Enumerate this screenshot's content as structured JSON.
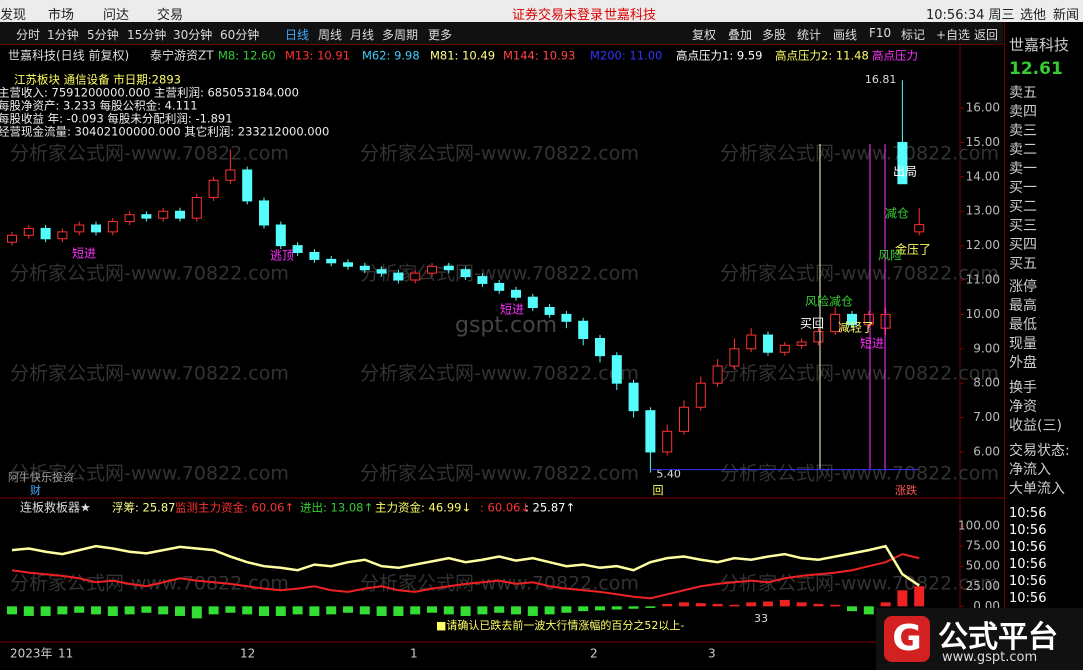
{
  "menu": [
    "发现",
    "市场",
    "问达",
    "交易"
  ],
  "status": "证券交易未登录",
  "stock_top": "世嘉科技",
  "clock": "10:56:34 周三",
  "top_right": [
    "选他",
    "新闻"
  ],
  "periods": [
    "分时",
    "1分钟",
    "5分钟",
    "15分钟",
    "30分钟",
    "60分钟",
    "日线",
    "周线",
    "月线",
    "多周期",
    "更多"
  ],
  "tools": [
    "复权",
    "叠加",
    "多股",
    "统计",
    "画线",
    "F10",
    "标记",
    "+自选",
    "返回"
  ],
  "chart_title": "世嘉科技(日线 前复权)",
  "indicator_name": "泰宁游资ZT",
  "ma": [
    "M8: 12.60",
    "M13: 10.91",
    "M62: 9.98",
    "M81: 10.49",
    "M144: 10.93",
    "M200: 11.00",
    "高点压力1: 9.59",
    "高点压力2: 11.48",
    "高点压力"
  ],
  "info": [
    "江苏板块  通信设备 市日期:2893",
    "主营收入: 7591200000.000   主营利润:  685053184.000",
    "每股净资产: 3.233       每股公积金:  4.111",
    "每股收益 年: -0.093     每股未分配利润:  -1.891",
    "经营现金流量: 30402100000.000   其它利润:  233212000.000"
  ],
  "watermark": "分析家公式网-www.70822.com",
  "site": "gspt.com",
  "main": {
    "ylim": [
      4.69,
      17.34
    ],
    "price_ticks": [
      {
        "value": 6,
        "label": "6.00"
      },
      {
        "value": 7,
        "label": "7.00"
      },
      {
        "value": 8,
        "label": "8.00"
      },
      {
        "value": 9,
        "label": "9.00"
      },
      {
        "value": 10,
        "label": "10.00"
      },
      {
        "value": 11,
        "label": "11.00"
      },
      {
        "value": 12,
        "label": "12.00"
      },
      {
        "value": 13,
        "label": "13.00"
      },
      {
        "value": 14,
        "label": "14.00"
      },
      {
        "value": 15,
        "label": "15.00"
      },
      {
        "value": 16,
        "label": "16.00"
      }
    ],
    "candles": {
      "open": [
        12.1,
        12.3,
        12.5,
        12.2,
        12.4,
        12.6,
        12.4,
        12.7,
        12.9,
        12.8,
        13.0,
        12.8,
        13.4,
        13.9,
        14.2,
        13.3,
        12.6,
        12.0,
        11.8,
        11.6,
        11.5,
        11.4,
        11.3,
        11.2,
        11.0,
        11.2,
        11.4,
        11.3,
        11.1,
        10.9,
        10.7,
        10.5,
        10.2,
        10.0,
        9.8,
        9.3,
        8.8,
        8.0,
        7.2,
        6.0,
        6.6,
        7.3,
        8.0,
        8.5,
        9.0,
        9.4,
        8.9,
        9.1,
        9.2,
        9.5,
        10.0,
        9.7,
        9.6,
        15.0,
        12.4
      ],
      "high": [
        12.4,
        12.6,
        12.6,
        12.5,
        12.7,
        12.7,
        12.8,
        13.0,
        13.0,
        13.1,
        13.1,
        13.5,
        14.0,
        14.8,
        14.3,
        13.4,
        12.7,
        12.1,
        11.9,
        11.7,
        11.6,
        11.5,
        11.4,
        11.3,
        11.3,
        11.5,
        11.5,
        11.4,
        11.2,
        11.0,
        10.8,
        10.6,
        10.3,
        10.1,
        9.9,
        9.4,
        8.9,
        8.1,
        7.3,
        6.8,
        7.5,
        8.2,
        8.7,
        9.3,
        9.6,
        9.5,
        9.2,
        9.3,
        9.6,
        10.2,
        10.1,
        10.1,
        10.2,
        16.81,
        13.1
      ],
      "low": [
        12.0,
        12.2,
        12.1,
        12.1,
        12.3,
        12.3,
        12.3,
        12.6,
        12.7,
        12.7,
        12.7,
        12.7,
        13.3,
        13.8,
        13.2,
        12.5,
        11.9,
        11.7,
        11.5,
        11.4,
        11.3,
        11.2,
        11.1,
        10.9,
        10.9,
        11.1,
        11.2,
        11.0,
        10.8,
        10.6,
        10.4,
        10.1,
        9.9,
        9.6,
        9.1,
        8.6,
        7.8,
        7.0,
        5.4,
        5.9,
        6.5,
        7.2,
        7.9,
        8.4,
        8.9,
        8.8,
        8.8,
        9.0,
        9.1,
        9.4,
        9.6,
        9.6,
        9.4,
        13.8,
        12.3
      ],
      "close": [
        12.3,
        12.5,
        12.2,
        12.4,
        12.6,
        12.4,
        12.7,
        12.9,
        12.8,
        13.0,
        12.8,
        13.4,
        13.9,
        14.2,
        13.3,
        12.6,
        12.0,
        11.8,
        11.6,
        11.5,
        11.4,
        11.3,
        11.2,
        11.0,
        11.2,
        11.4,
        11.3,
        11.1,
        10.9,
        10.7,
        10.5,
        10.2,
        10.0,
        9.8,
        9.3,
        8.8,
        8.0,
        7.2,
        6.0,
        6.6,
        7.3,
        8.0,
        8.5,
        9.0,
        9.4,
        8.9,
        9.1,
        9.2,
        9.5,
        10.0,
        9.7,
        10.0,
        10.0,
        13.8,
        12.61
      ]
    },
    "high_label": "16.81",
    "low_label": "5.40",
    "annotations": [
      "出局",
      "减仓",
      "金压了",
      "风险",
      "风险减仓",
      "短进",
      "短进",
      "买回",
      "减轻了",
      "逃顶",
      "短进"
    ],
    "panel_label": "阿牛快乐投资",
    "corner": "财",
    "box": "回",
    "updown": "涨跌"
  },
  "sub": {
    "name": "连板救板器★",
    "items": [
      "浮筹: 25.87",
      "监测主力资金: 60.06↑",
      "进出: 13.08↑",
      "主力资金: 46.99↓",
      ": 60.06↓",
      ": 25.87↑"
    ],
    "ylim": [
      -22,
      115
    ],
    "ticks": [
      {
        "value": 0,
        "label": "0.00"
      },
      {
        "value": 25,
        "label": "25.00"
      },
      {
        "value": 50,
        "label": "50.00"
      },
      {
        "value": 75,
        "label": "75.00"
      },
      {
        "value": 100,
        "label": "100.00"
      }
    ],
    "yellow": [
      70,
      72,
      68,
      65,
      70,
      75,
      72,
      68,
      66,
      70,
      74,
      72,
      70,
      62,
      55,
      50,
      48,
      45,
      52,
      50,
      55,
      58,
      50,
      48,
      52,
      56,
      60,
      55,
      58,
      62,
      57,
      60,
      55,
      50,
      52,
      48,
      50,
      45,
      55,
      60,
      62,
      58,
      55,
      60,
      58,
      62,
      65,
      60,
      58,
      62,
      66,
      70,
      75,
      40,
      25.87
    ],
    "red": [
      45,
      42,
      40,
      38,
      35,
      30,
      32,
      28,
      25,
      30,
      35,
      32,
      30,
      28,
      25,
      22,
      20,
      22,
      25,
      20,
      18,
      22,
      25,
      20,
      18,
      22,
      25,
      28,
      30,
      32,
      28,
      30,
      25,
      22,
      20,
      18,
      15,
      12,
      10,
      15,
      20,
      25,
      28,
      30,
      32,
      30,
      35,
      38,
      40,
      42,
      45,
      50,
      55,
      65,
      60.06
    ],
    "bars": [
      -10,
      -12,
      -12,
      -10,
      -8,
      -10,
      -12,
      -10,
      -8,
      -10,
      -12,
      -15,
      -10,
      -8,
      -10,
      -12,
      -12,
      -10,
      -12,
      -10,
      -8,
      -10,
      -12,
      -12,
      -10,
      -8,
      -10,
      -12,
      -10,
      -8,
      -10,
      -12,
      -10,
      -8,
      -6,
      -5,
      -4,
      -3,
      -2,
      3,
      5,
      4,
      3,
      2,
      5,
      6,
      8,
      5,
      3,
      2,
      -6,
      -10,
      5,
      20,
      25
    ],
    "note": "■请确认已跌去前一波大行情涨幅的百分之52以上-",
    "num": "33"
  },
  "dates": [
    "2023年",
    "11",
    "12",
    "1",
    "2",
    "3"
  ],
  "sidebar": {
    "name": "世嘉科技",
    "price": "12.61",
    "labels": [
      "卖五",
      "卖四",
      "卖三",
      "卖二",
      "卖一",
      "买一",
      "买二",
      "买三",
      "买四",
      "买五",
      "涨停",
      "最高",
      "最低",
      "现量",
      "外盘",
      "换手",
      "净资",
      "收益(三)",
      "交易状态:",
      "净流入",
      "大单流入"
    ],
    "times": [
      "10:56",
      "10:56",
      "10:56",
      "10:56",
      "10:56",
      "10:56",
      "10:56",
      "10:56"
    ]
  },
  "logo": {
    "name": "公式平台",
    "url": "www.gspt.com"
  }
}
